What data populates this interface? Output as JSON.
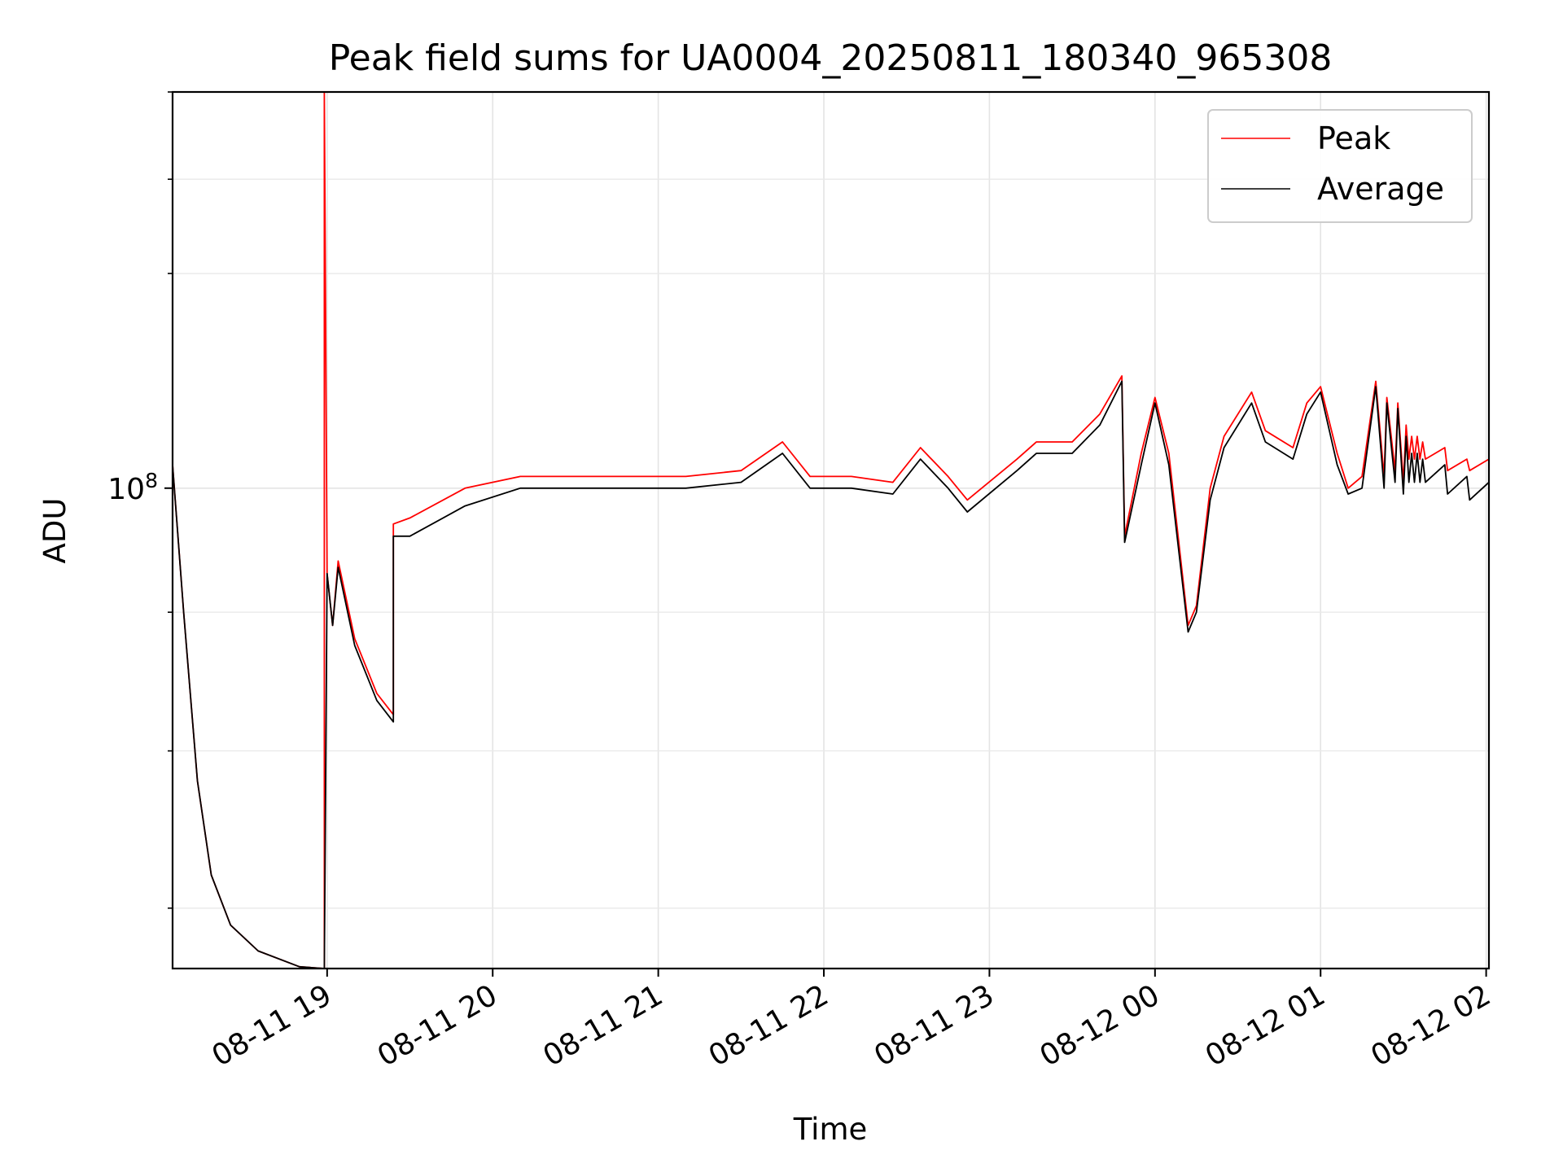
{
  "chart_data": {
    "type": "line",
    "title": "Peak field sums for UA0004_20250811_180340_965308",
    "xlabel": "Time",
    "ylabel": "ADU",
    "y_scale": "log",
    "grid": true,
    "legend_position": "top-right",
    "x_ticks": [
      "08-11 19",
      "08-11 20",
      "08-11 21",
      "08-11 22",
      "08-11 23",
      "08-12 00",
      "08-12 01",
      "08-12 02"
    ],
    "y_ticks": [
      {
        "label": "10",
        "exp": "8",
        "value": 100000000
      }
    ],
    "x_range": [
      "2025-08-11 18:04",
      "2025-08-12 02:01"
    ],
    "ylim": [
      66500000,
      140000000
    ],
    "colors": {
      "Peak": "#ff0000",
      "Average": "#000000"
    },
    "x": [
      "2025-08-11 18:04",
      "2025-08-11 18:08",
      "2025-08-11 18:13",
      "2025-08-11 18:18",
      "2025-08-11 18:25",
      "2025-08-11 18:35",
      "2025-08-11 18:50",
      "2025-08-11 18:59",
      "2025-08-11 18:59",
      "2025-08-11 19:00",
      "2025-08-11 19:02",
      "2025-08-11 19:04",
      "2025-08-11 19:10",
      "2025-08-11 19:18",
      "2025-08-11 19:24",
      "2025-08-11 19:24",
      "2025-08-11 19:30",
      "2025-08-11 19:50",
      "2025-08-11 20:10",
      "2025-08-11 20:40",
      "2025-08-11 21:10",
      "2025-08-11 21:30",
      "2025-08-11 21:45",
      "2025-08-11 21:55",
      "2025-08-11 22:10",
      "2025-08-11 22:25",
      "2025-08-11 22:35",
      "2025-08-11 22:45",
      "2025-08-11 22:52",
      "2025-08-11 23:10",
      "2025-08-11 23:17",
      "2025-08-11 23:30",
      "2025-08-11 23:40",
      "2025-08-11 23:48",
      "2025-08-11 23:49",
      "2025-08-11 23:55",
      "2025-08-12 00:00",
      "2025-08-12 00:05",
      "2025-08-12 00:12",
      "2025-08-12 00:15",
      "2025-08-12 00:20",
      "2025-08-12 00:25",
      "2025-08-12 00:35",
      "2025-08-12 00:40",
      "2025-08-12 00:50",
      "2025-08-12 00:55",
      "2025-08-12 01:00",
      "2025-08-12 01:06",
      "2025-08-12 01:10",
      "2025-08-12 01:15",
      "2025-08-12 01:20",
      "2025-08-12 01:23",
      "2025-08-12 01:24",
      "2025-08-12 01:27",
      "2025-08-12 01:28",
      "2025-08-12 01:30",
      "2025-08-12 01:31",
      "2025-08-12 01:32",
      "2025-08-12 01:33",
      "2025-08-12 01:34",
      "2025-08-12 01:35",
      "2025-08-12 01:36",
      "2025-08-12 01:37",
      "2025-08-12 01:38",
      "2025-08-12 01:45",
      "2025-08-12 01:46",
      "2025-08-12 01:53",
      "2025-08-12 01:54",
      "2025-08-12 02:01"
    ],
    "series": [
      {
        "name": "Peak",
        "values": [
          102000000,
          90000000,
          78000000,
          72000000,
          69000000,
          67500000,
          66600000,
          66500000,
          140000000,
          93000000,
          89000000,
          94000000,
          88000000,
          84000000,
          82500000,
          97000000,
          97500000,
          100000000,
          101000000,
          101000000,
          101000000,
          101500000,
          104000000,
          101000000,
          101000000,
          100500000,
          103500000,
          101000000,
          99000000,
          102500000,
          104000000,
          104000000,
          106500000,
          110000000,
          96000000,
          103000000,
          108000000,
          103000000,
          89000000,
          90500000,
          100000000,
          104500000,
          108500000,
          105000000,
          103500000,
          107500000,
          109000000,
          103000000,
          100000000,
          101000000,
          109500000,
          101000000,
          108000000,
          101500000,
          107500000,
          100500000,
          105500000,
          102500000,
          104500000,
          102500000,
          104500000,
          102500000,
          104000000,
          102500000,
          103500000,
          101500000,
          102500000,
          101500000,
          102500000
        ]
      },
      {
        "name": "Average",
        "values": [
          102000000,
          90000000,
          78000000,
          72000000,
          69000000,
          67500000,
          66600000,
          66500000,
          66500000,
          93000000,
          89000000,
          93500000,
          87500000,
          83500000,
          82000000,
          96000000,
          96000000,
          98500000,
          100000000,
          100000000,
          100000000,
          100500000,
          103000000,
          100000000,
          100000000,
          99500000,
          102500000,
          100000000,
          98000000,
          101500000,
          103000000,
          103000000,
          105500000,
          109500000,
          95500000,
          102000000,
          107500000,
          102000000,
          88500000,
          90000000,
          99000000,
          103500000,
          107500000,
          104000000,
          102500000,
          106500000,
          108500000,
          102000000,
          99500000,
          100000000,
          109000000,
          100000000,
          107500000,
          100500000,
          107000000,
          99500000,
          104500000,
          100500000,
          103000000,
          100500000,
          103000000,
          100500000,
          102500000,
          100500000,
          102000000,
          99500000,
          101000000,
          99000000,
          100500000
        ]
      }
    ]
  }
}
